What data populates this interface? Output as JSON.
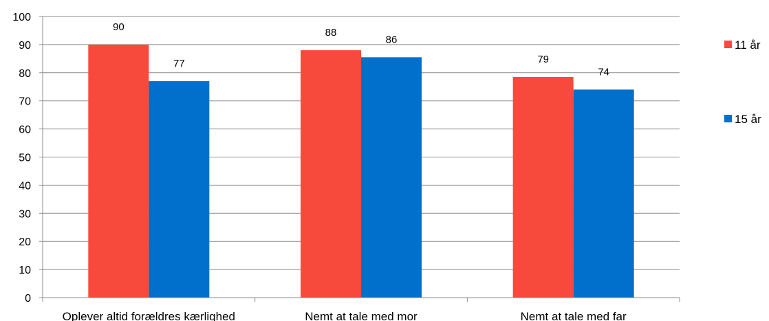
{
  "chart_data": {
    "type": "bar",
    "categories": [
      "Oplever altid forældres kærlighed",
      "Nemt at tale med mor",
      "Nemt at tale med far"
    ],
    "series": [
      {
        "name": "11 år",
        "values": [
          90,
          88,
          78.5
        ],
        "labels": [
          "90",
          "88",
          "79"
        ],
        "color": "#f84a3c"
      },
      {
        "name": "15 år",
        "values": [
          77,
          85.5,
          74
        ],
        "labels": [
          "77",
          "86",
          "74"
        ],
        "color": "#0070cc"
      }
    ],
    "ylim": [
      0,
      100
    ],
    "yticks": [
      0,
      10,
      20,
      30,
      40,
      50,
      60,
      70,
      80,
      90,
      100
    ],
    "grid": true,
    "legend": "right",
    "title": "",
    "xlabel": "",
    "ylabel": ""
  }
}
